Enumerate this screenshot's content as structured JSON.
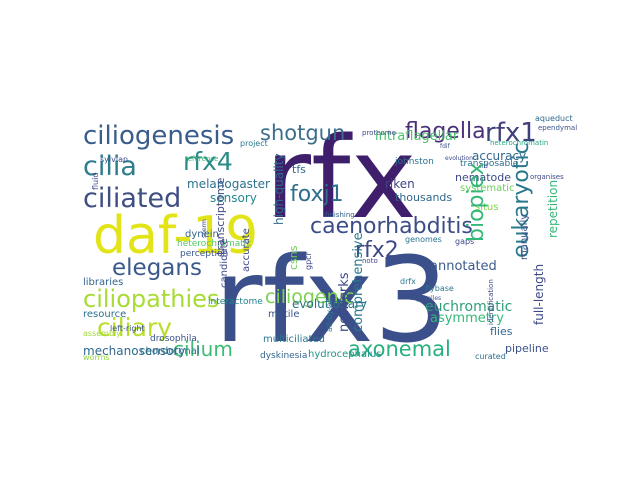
{
  "words": [
    {
      "text": "rfx3",
      "color": "#3b4f8a"
    },
    {
      "text": "rfx",
      "color": "#3f1f6b"
    },
    {
      "text": "daf-19",
      "color": "#e3e418"
    },
    {
      "text": "ciliogenesis",
      "color": "#3a5d8c"
    },
    {
      "text": "shotgun",
      "color": "#3b6f8c"
    },
    {
      "text": "flagella",
      "color": "#4b2f79"
    },
    {
      "text": "rfx1",
      "color": "#3f3f7b"
    },
    {
      "text": "cilia",
      "color": "#2d7d8c"
    },
    {
      "text": "rfx4",
      "color": "#2a8b86"
    },
    {
      "text": "ciliated",
      "color": "#3f4f83"
    },
    {
      "text": "foxj1",
      "color": "#2e6f8e"
    },
    {
      "text": "caenorhabditis",
      "color": "#3c4c87"
    },
    {
      "text": "elegans",
      "color": "#3b5a8b"
    },
    {
      "text": "rfx2",
      "color": "#3e4a88"
    },
    {
      "text": "ciliopathies",
      "color": "#a8db34"
    },
    {
      "text": "ciliogenic",
      "color": "#7ad151"
    },
    {
      "text": "ciliary",
      "color": "#b6de2b"
    },
    {
      "text": "cilium",
      "color": "#3fbc73"
    },
    {
      "text": "axonemal",
      "color": "#2ab07f"
    },
    {
      "text": "annotated",
      "color": "#3b5b8b"
    },
    {
      "text": "euchromatic",
      "color": "#2e9e78"
    },
    {
      "text": "asymmetry",
      "color": "#35b779"
    },
    {
      "text": "intraflagellar",
      "color": "#4ac16d"
    },
    {
      "text": "accuracy",
      "color": "#31688e"
    },
    {
      "text": "melanogaster",
      "color": "#2c728e"
    },
    {
      "text": "pipeline",
      "color": "#3b518b"
    },
    {
      "text": "resource",
      "color": "#2d708e"
    },
    {
      "text": "libraries",
      "color": "#33638d"
    },
    {
      "text": "drosophila",
      "color": "#3b528b"
    },
    {
      "text": "mechanosensory",
      "color": "#31688e"
    },
    {
      "text": "chordotonal",
      "color": "#2c728e"
    },
    {
      "text": "hydrocephalus",
      "color": "#20928c"
    },
    {
      "text": "dyskinesia",
      "color": "#33638d"
    },
    {
      "text": "motile",
      "color": "#3a548c"
    },
    {
      "text": "multiciliated",
      "color": "#2a788e"
    },
    {
      "text": "interactome",
      "color": "#26828e"
    },
    {
      "text": "heterochromatic",
      "color": "#58c765"
    },
    {
      "text": "perception",
      "color": "#3a548c"
    },
    {
      "text": "dynein",
      "color": "#31688e"
    },
    {
      "text": "sensory",
      "color": "#25858e"
    },
    {
      "text": "genomes",
      "color": "#2a768e"
    },
    {
      "text": "gaps",
      "color": "#3e4989"
    },
    {
      "text": "riken",
      "color": "#3f4788"
    },
    {
      "text": "thousands",
      "color": "#31688e"
    },
    {
      "text": "tfs",
      "color": "#33638d"
    },
    {
      "text": "johnston",
      "color": "#2c728e"
    },
    {
      "text": "transposable",
      "color": "#2e6e8e"
    },
    {
      "text": "systematic",
      "color": "#6ccd5a"
    },
    {
      "text": "situs",
      "color": "#86d549"
    },
    {
      "text": "nematode",
      "color": "#3e4a89"
    },
    {
      "text": "evolutionary",
      "color": "#2c718e"
    },
    {
      "text": "flies",
      "color": "#31688e"
    },
    {
      "text": "flybase",
      "color": "#2a788e"
    },
    {
      "text": "aqueduct",
      "color": "#31688e"
    },
    {
      "text": "ependymal",
      "color": "#3b528b"
    },
    {
      "text": "project",
      "color": "#2a788e"
    },
    {
      "text": "curated",
      "color": "#2d708e"
    },
    {
      "text": "worms",
      "color": "#95d840"
    },
    {
      "text": "assembly",
      "color": "#a5db36"
    },
    {
      "text": "left-right",
      "color": "#3b528b"
    },
    {
      "text": "finishing",
      "color": "#33638d"
    },
    {
      "text": "drfx",
      "color": "#2a788e"
    },
    {
      "text": "noto",
      "color": "#3e4989"
    },
    {
      "text": "cdnas",
      "color": "#3b528b"
    },
    {
      "text": "sylvian",
      "color": "#3b528b"
    },
    {
      "text": "proteome",
      "color": "#3e4989"
    },
    {
      "text": "reference",
      "color": "#35b779"
    },
    {
      "text": "heterochromatin",
      "color": "#22a884"
    },
    {
      "text": "organelles",
      "color": "#3b528b"
    },
    {
      "text": "fdif",
      "color": "#3b528b"
    },
    {
      "text": "lrd",
      "color": "#3e4989"
    },
    {
      "text": "organises",
      "color": "#3e4989"
    },
    {
      "text": "evolution",
      "color": "#3e4989"
    },
    {
      "text": "biopiex",
      "color": "#35b779"
    },
    {
      "text": "eukaryotic",
      "color": "#2a788e"
    },
    {
      "text": "full-length",
      "color": "#3e4989"
    },
    {
      "text": "repetition",
      "color": "#35b779"
    },
    {
      "text": "manually",
      "color": "#3b528b"
    },
    {
      "text": "networks",
      "color": "#3e4989"
    },
    {
      "text": "comprehensive",
      "color": "#2a788e"
    },
    {
      "text": "accurate",
      "color": "#3e4989"
    },
    {
      "text": "transcriptome",
      "color": "#3e4989"
    },
    {
      "text": "high-quality",
      "color": "#31688e"
    },
    {
      "text": "csns",
      "color": "#6ccd5a"
    },
    {
      "text": "all-by-all",
      "color": "#2a788e"
    },
    {
      "text": "gpcr",
      "color": "#3e4989"
    },
    {
      "text": "identification",
      "color": "#3e4989"
    },
    {
      "text": "candidate",
      "color": "#3e4989"
    },
    {
      "text": "sperm",
      "color": "#3e4989"
    },
    {
      "text": "fluid",
      "color": "#3e4989"
    }
  ]
}
